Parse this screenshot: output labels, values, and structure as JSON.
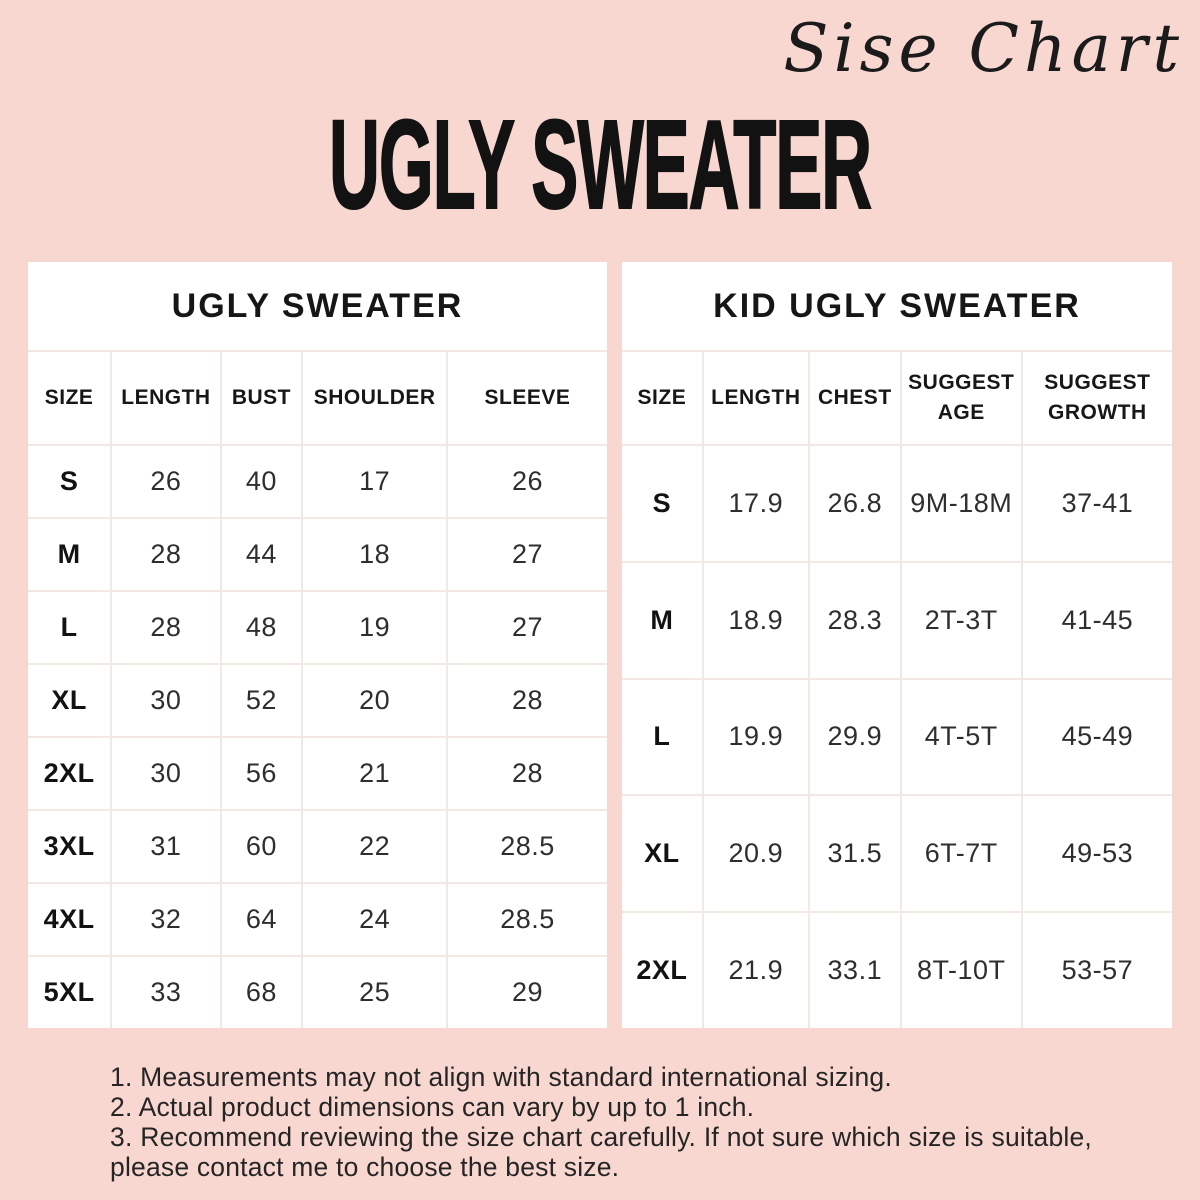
{
  "header": {
    "script_title": "Sise Chart",
    "main_title": "UGLY SWEATER"
  },
  "tables": {
    "adult": {
      "title": "UGLY SWEATER",
      "columns": [
        "SIZE",
        "LENGTH",
        "BUST",
        "SHOULDER",
        "SLEEVE"
      ],
      "rows": [
        [
          "S",
          "26",
          "40",
          "17",
          "26"
        ],
        [
          "M",
          "28",
          "44",
          "18",
          "27"
        ],
        [
          "L",
          "28",
          "48",
          "19",
          "27"
        ],
        [
          "XL",
          "30",
          "52",
          "20",
          "28"
        ],
        [
          "2XL",
          "30",
          "56",
          "21",
          "28"
        ],
        [
          "3XL",
          "31",
          "60",
          "22",
          "28.5"
        ],
        [
          "4XL",
          "32",
          "64",
          "24",
          "28.5"
        ],
        [
          "5XL",
          "33",
          "68",
          "25",
          "29"
        ]
      ]
    },
    "kid": {
      "title": "KID UGLY SWEATER",
      "columns": [
        "SIZE",
        "LENGTH",
        "CHEST",
        "SUGGEST AGE",
        "SUGGEST GROWTH"
      ],
      "rows": [
        [
          "S",
          "17.9",
          "26.8",
          "9M-18M",
          "37-41"
        ],
        [
          "M",
          "18.9",
          "28.3",
          "2T-3T",
          "41-45"
        ],
        [
          "L",
          "19.9",
          "29.9",
          "4T-5T",
          "45-49"
        ],
        [
          "XL",
          "20.9",
          "31.5",
          "6T-7T",
          "49-53"
        ],
        [
          "2XL",
          "21.9",
          "33.1",
          "8T-10T",
          "53-57"
        ]
      ]
    }
  },
  "notes": [
    "1. Measurements may not align with standard international sizing.",
    "2. Actual product dimensions can vary by up to 1 inch.",
    "3. Recommend reviewing the size chart carefully. If not sure which size is suitable, please contact me to choose the best size."
  ],
  "colors": {
    "background": "#f9d7d1",
    "panel": "#ffffff",
    "grid": "#f2e8e4",
    "text": "#1c1c1c"
  }
}
